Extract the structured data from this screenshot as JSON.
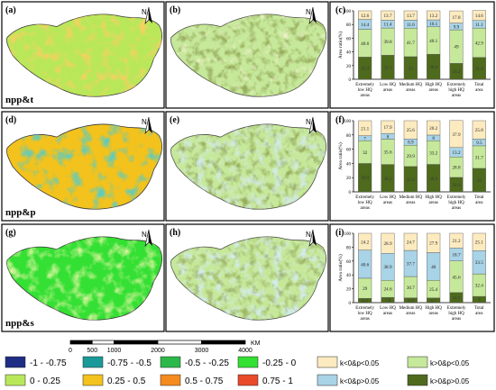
{
  "panels": {
    "a": "(a)",
    "b": "(b)",
    "c": "(c)",
    "d": "(d)",
    "e": "(e)",
    "f": "(f)",
    "g": "(g)",
    "h": "(h)",
    "i": "(i)"
  },
  "map_labels": [
    "npp&t",
    "npp&p",
    "npp&s"
  ],
  "north_letter": "N",
  "scale_bar": {
    "ticks": [
      "0",
      "500",
      "1000",
      "2000",
      "3000",
      "4000"
    ],
    "unit": "KM"
  },
  "colors": {
    "class_neg_1": "#1f2d85",
    "class_neg_075": "#1b9a9a",
    "class_neg_05": "#2db84a",
    "class_neg_025": "#33e033",
    "class_0": "#b8e85a",
    "class_025": "#f3c21c",
    "class_05": "#f58a1e",
    "class_075": "#e84a2a",
    "k_neg_sig": "#fdebc0",
    "k_pos_sig": "#c6e89a",
    "k_neg_nonsig": "#a9d3e6",
    "k_pos_nonsig": "#4e6a1c"
  },
  "legend": {
    "correlation": [
      "-1 - -0.75",
      "-0.75 - -0.5",
      "-0.5 - -0.25",
      "-0.25 - 0",
      "0 - 0.25",
      "0.25 - 0.5",
      "0.5 - 0.75",
      "0.75 - 1"
    ],
    "k_classes": [
      "k<0&p<0.05",
      "k>0&p<0.05",
      "k<0&p>0.05",
      "k>0&p>0.05"
    ]
  },
  "chart_data": [
    {
      "panel": "(c)",
      "type": "bar",
      "stacked": true,
      "categories": [
        "Extremely low HQ areas",
        "Low HQ areas",
        "Medium HQ areas",
        "High HQ areas",
        "Extremely high HQ areas",
        "Total area"
      ],
      "ylabel": "Area ratio(%)",
      "ylim": [
        0,
        100
      ],
      "yticks": [
        0,
        20,
        40,
        60,
        80,
        100
      ],
      "series": [
        {
          "name": "k>0&p>0.05",
          "values": [
            32.4,
            35.1,
            33,
            36.6,
            23.2,
            31.9
          ]
        },
        {
          "name": "k>0&p<0.05",
          "values": [
            40.6,
            39.8,
            41.7,
            40.1,
            49,
            42.9
          ]
        },
        {
          "name": "k<0&p>0.05",
          "values": [
            14.4,
            11.4,
            11.6,
            10.1,
            9.9,
            11.1
          ]
        },
        {
          "name": "k<0&p<0.05",
          "values": [
            12.6,
            13.7,
            13.7,
            13.2,
            17.8,
            14.6
          ]
        }
      ]
    },
    {
      "panel": "(f)",
      "type": "bar",
      "stacked": true,
      "categories": [
        "Extremely low HQ areas",
        "Low HQ areas",
        "Medium HQ areas",
        "High HQ areas",
        "Extremely high HQ areas",
        "Total area"
      ],
      "ylabel": "Area ratio(%)",
      "ylim": [
        0,
        100
      ],
      "yticks": [
        0,
        20,
        40,
        60,
        80,
        100
      ],
      "series": [
        {
          "name": "k>0&p>0.05",
          "values": [
            39.9,
            38.5,
            35.6,
            38.6,
            20.3,
            33
          ]
        },
        {
          "name": "k>0&p<0.05",
          "values": [
            32,
            35.6,
            29.9,
            33.2,
            28.8,
            31.7
          ]
        },
        {
          "name": "k<0&p>0.05",
          "values": [
            7,
            8,
            8.9,
            8,
            13.2,
            9.5
          ]
        },
        {
          "name": "k<0&p<0.05",
          "values": [
            21.1,
            17.9,
            25.6,
            20.2,
            37.9,
            25.8
          ]
        }
      ]
    },
    {
      "panel": "(i)",
      "type": "bar",
      "stacked": true,
      "categories": [
        "Extremely low HQ areas",
        "Low HQ areas",
        "Medium HQ areas",
        "High HQ areas",
        "Extremely high HQ areas",
        "Total area"
      ],
      "ylabel": "Area ratio(%)",
      "ylim": [
        0,
        100
      ],
      "yticks": [
        0,
        20,
        40,
        60,
        80,
        100
      ],
      "series": [
        {
          "name": "k>0&p>0.05",
          "values": [
            6.2,
            7.6,
            6.9,
            6.7,
            14.5,
            9
          ]
        },
        {
          "name": "k>0&p<0.05",
          "values": [
            29,
            24.6,
            30.7,
            25.4,
            45.6,
            32.4
          ]
        },
        {
          "name": "k<0&p>0.05",
          "values": [
            40.6,
            38.9,
            37.7,
            40,
            18.7,
            33.5
          ]
        },
        {
          "name": "k<0&p<0.05",
          "values": [
            24.2,
            28.9,
            24.7,
            27.9,
            21.2,
            25.1
          ]
        }
      ]
    }
  ]
}
